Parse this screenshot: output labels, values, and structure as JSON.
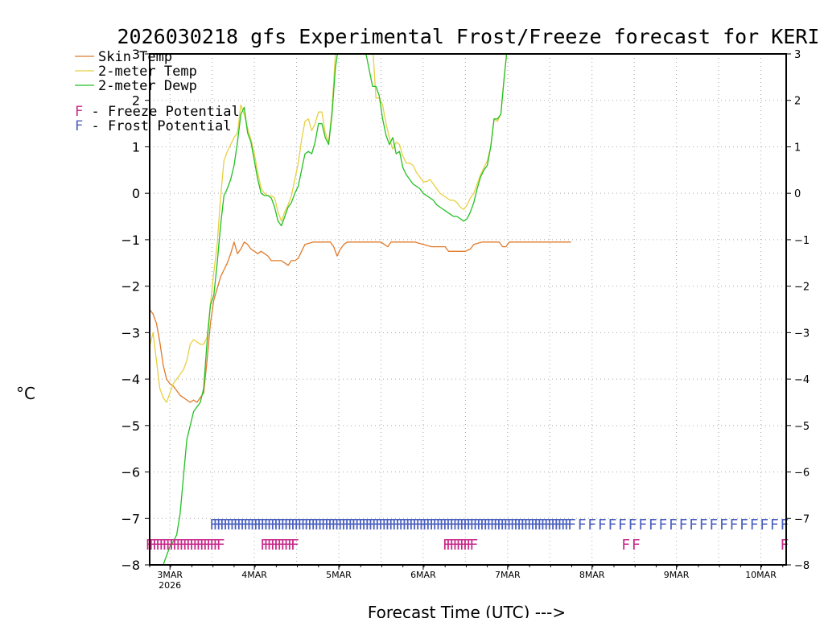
{
  "chart_data": {
    "type": "line",
    "title": "2026030218 gfs Experimental Frost/Freeze forecast for KERI",
    "ylabel": "°C",
    "xlabel": "Forecast Time (UTC) --->",
    "ylim": [
      -8,
      3
    ],
    "yticks": [
      3,
      2,
      1,
      0,
      -1,
      -2,
      -3,
      -4,
      -5,
      -6,
      -7,
      -8
    ],
    "ytick_labels": [
      "3",
      "2",
      "1",
      "0",
      "−1",
      "−2",
      "−3",
      "−4",
      "−5",
      "−6",
      "−7",
      "−8"
    ],
    "xlim": [
      2.76,
      10.3
    ],
    "xticks": [
      {
        "label": "3MAR",
        "sub": "2026",
        "day": 3
      },
      {
        "label": "4MAR",
        "sub": "",
        "day": 4
      },
      {
        "label": "5MAR",
        "sub": "",
        "day": 5
      },
      {
        "label": "6MAR",
        "sub": "",
        "day": 6
      },
      {
        "label": "7MAR",
        "sub": "",
        "day": 7
      },
      {
        "label": "8MAR",
        "sub": "",
        "day": 8
      },
      {
        "label": "9MAR",
        "sub": "",
        "day": 9
      },
      {
        "label": "10MAR",
        "sub": "",
        "day": 10
      }
    ],
    "grid": true,
    "legend_position": "top-left",
    "series": [
      {
        "name": "Skin Temp",
        "color": "#e07a2a",
        "x": [
          2.76,
          2.8,
          2.84,
          2.88,
          2.92,
          2.96,
          3.0,
          3.04,
          3.08,
          3.12,
          3.16,
          3.2,
          3.24,
          3.28,
          3.32,
          3.36,
          3.4,
          3.44,
          3.48,
          3.52,
          3.56,
          3.6,
          3.64,
          3.68,
          3.72,
          3.76,
          3.8,
          3.84,
          3.88,
          3.92,
          3.96,
          4.0,
          4.04,
          4.08,
          4.12,
          4.16,
          4.2,
          4.24,
          4.28,
          4.32,
          4.36,
          4.4,
          4.44,
          4.48,
          4.52,
          4.56,
          4.6,
          4.7,
          4.8,
          4.9,
          4.94,
          4.98,
          5.02,
          5.06,
          5.1,
          5.2,
          5.3,
          5.4,
          5.5,
          5.54,
          5.58,
          5.62,
          5.7,
          5.8,
          5.9,
          6.0,
          6.1,
          6.2,
          6.26,
          6.3,
          6.4,
          6.5,
          6.56,
          6.6,
          6.7,
          6.8,
          6.9,
          6.94,
          6.98,
          7.02,
          7.06,
          7.1,
          7.2,
          7.3,
          7.4,
          7.5,
          7.6,
          7.75
        ],
        "values": [
          -2.5,
          -2.6,
          -2.8,
          -3.2,
          -3.7,
          -4.0,
          -4.1,
          -4.15,
          -4.25,
          -4.35,
          -4.4,
          -4.45,
          -4.5,
          -4.45,
          -4.5,
          -4.4,
          -4.3,
          -3.6,
          -2.8,
          -2.3,
          -2.05,
          -1.8,
          -1.65,
          -1.5,
          -1.3,
          -1.05,
          -1.3,
          -1.2,
          -1.05,
          -1.1,
          -1.2,
          -1.25,
          -1.3,
          -1.25,
          -1.3,
          -1.35,
          -1.45,
          -1.45,
          -1.45,
          -1.45,
          -1.5,
          -1.55,
          -1.45,
          -1.45,
          -1.4,
          -1.25,
          -1.1,
          -1.05,
          -1.05,
          -1.05,
          -1.15,
          -1.35,
          -1.2,
          -1.1,
          -1.05,
          -1.05,
          -1.05,
          -1.05,
          -1.05,
          -1.1,
          -1.15,
          -1.05,
          -1.05,
          -1.05,
          -1.05,
          -1.1,
          -1.15,
          -1.15,
          -1.15,
          -1.25,
          -1.25,
          -1.25,
          -1.2,
          -1.1,
          -1.05,
          -1.05,
          -1.05,
          -1.15,
          -1.15,
          -1.05,
          -1.05,
          -1.05,
          -1.05,
          -1.05,
          -1.05,
          -1.05,
          -1.05,
          -1.05
        ]
      },
      {
        "name": "2-meter Temp",
        "color": "#e8d040",
        "x": [
          2.76,
          2.8,
          2.84,
          2.88,
          2.92,
          2.96,
          3.0,
          3.04,
          3.08,
          3.12,
          3.16,
          3.2,
          3.24,
          3.28,
          3.32,
          3.36,
          3.4,
          3.44,
          3.48,
          3.52,
          3.56,
          3.6,
          3.64,
          3.68,
          3.72,
          3.76,
          3.8,
          3.84,
          3.88,
          3.92,
          3.96,
          4.0,
          4.04,
          4.08,
          4.12,
          4.16,
          4.2,
          4.24,
          4.28,
          4.32,
          4.36,
          4.4,
          4.44,
          4.48,
          4.52,
          4.56,
          4.6,
          4.64,
          4.68,
          4.72,
          4.76,
          4.8,
          4.84,
          4.88,
          4.92,
          4.96,
          5.0,
          5.04,
          5.08,
          5.12,
          5.16,
          5.2,
          5.3,
          5.4,
          5.44,
          5.48,
          5.52,
          5.56,
          5.6,
          5.64,
          5.68,
          5.72,
          5.76,
          5.8,
          5.84,
          5.88,
          5.92,
          5.96,
          6.0,
          6.04,
          6.08,
          6.12,
          6.16,
          6.2,
          6.24,
          6.28,
          6.32,
          6.36,
          6.4,
          6.44,
          6.48,
          6.52,
          6.56,
          6.6,
          6.64,
          6.68,
          6.72,
          6.76,
          6.8,
          6.84,
          6.88,
          6.92,
          6.96,
          7.0,
          7.02
        ],
        "values": [
          -3.3,
          -3.0,
          -3.6,
          -4.2,
          -4.4,
          -4.5,
          -4.3,
          -4.1,
          -4.0,
          -3.9,
          -3.8,
          -3.6,
          -3.25,
          -3.15,
          -3.2,
          -3.25,
          -3.25,
          -3.1,
          -2.4,
          -1.7,
          -1.1,
          -0.1,
          0.7,
          0.9,
          1.05,
          1.2,
          1.3,
          1.9,
          1.7,
          1.4,
          1.15,
          0.85,
          0.45,
          0.1,
          0.0,
          -0.05,
          -0.05,
          -0.1,
          -0.4,
          -0.6,
          -0.4,
          -0.25,
          -0.05,
          0.3,
          0.65,
          1.15,
          1.55,
          1.6,
          1.35,
          1.5,
          1.75,
          1.75,
          1.3,
          1.1,
          1.8,
          3.0,
          3.2,
          3.2,
          3.2,
          3.2,
          3.2,
          3.2,
          3.2,
          3.2,
          2.05,
          2.05,
          1.9,
          1.5,
          1.2,
          0.95,
          1.1,
          1.05,
          0.8,
          0.65,
          0.65,
          0.6,
          0.45,
          0.35,
          0.25,
          0.25,
          0.3,
          0.2,
          0.1,
          0.0,
          -0.05,
          -0.1,
          -0.15,
          -0.15,
          -0.2,
          -0.3,
          -0.35,
          -0.25,
          -0.1,
          0.0,
          0.2,
          0.4,
          0.55,
          0.7,
          1.0,
          1.6,
          1.55,
          1.7,
          2.5,
          3.2,
          3.2
        ]
      },
      {
        "name": "2-meter Dewp",
        "color": "#22c022",
        "x": [
          2.92,
          2.96,
          3.0,
          3.04,
          3.08,
          3.12,
          3.16,
          3.2,
          3.24,
          3.28,
          3.32,
          3.36,
          3.4,
          3.44,
          3.48,
          3.52,
          3.56,
          3.6,
          3.64,
          3.68,
          3.72,
          3.76,
          3.8,
          3.84,
          3.88,
          3.92,
          3.96,
          4.0,
          4.04,
          4.08,
          4.12,
          4.16,
          4.2,
          4.24,
          4.28,
          4.32,
          4.36,
          4.4,
          4.44,
          4.48,
          4.52,
          4.56,
          4.6,
          4.64,
          4.68,
          4.72,
          4.76,
          4.8,
          4.84,
          4.88,
          4.92,
          4.96,
          5.0,
          5.04,
          5.08,
          5.12,
          5.16,
          5.2,
          5.3,
          5.4,
          5.44,
          5.48,
          5.52,
          5.56,
          5.6,
          5.64,
          5.68,
          5.72,
          5.76,
          5.8,
          5.84,
          5.88,
          5.92,
          5.96,
          6.0,
          6.04,
          6.08,
          6.12,
          6.16,
          6.2,
          6.24,
          6.28,
          6.32,
          6.36,
          6.4,
          6.44,
          6.48,
          6.52,
          6.56,
          6.6,
          6.64,
          6.68,
          6.72,
          6.76,
          6.8,
          6.84,
          6.88,
          6.92,
          6.96,
          7.0,
          7.02
        ],
        "values": [
          -8.0,
          -7.8,
          -7.6,
          -7.5,
          -7.35,
          -6.9,
          -6.1,
          -5.3,
          -5.0,
          -4.7,
          -4.6,
          -4.5,
          -4.2,
          -3.2,
          -2.4,
          -2.2,
          -1.5,
          -0.7,
          -0.05,
          0.1,
          0.3,
          0.6,
          1.1,
          1.7,
          1.85,
          1.3,
          1.1,
          0.7,
          0.3,
          0.0,
          -0.05,
          -0.05,
          -0.1,
          -0.3,
          -0.6,
          -0.7,
          -0.5,
          -0.3,
          -0.2,
          0.0,
          0.15,
          0.5,
          0.85,
          0.9,
          0.85,
          1.1,
          1.5,
          1.5,
          1.2,
          1.05,
          1.7,
          2.7,
          3.2,
          3.2,
          3.2,
          3.2,
          3.2,
          3.2,
          3.2,
          2.3,
          2.3,
          2.1,
          1.6,
          1.25,
          1.05,
          1.2,
          0.85,
          0.9,
          0.55,
          0.4,
          0.3,
          0.2,
          0.15,
          0.1,
          0.0,
          -0.05,
          -0.1,
          -0.15,
          -0.25,
          -0.3,
          -0.35,
          -0.4,
          -0.45,
          -0.5,
          -0.5,
          -0.55,
          -0.6,
          -0.55,
          -0.4,
          -0.2,
          0.1,
          0.35,
          0.5,
          0.6,
          1.0,
          1.6,
          1.6,
          1.7,
          2.5,
          3.2,
          3.2
        ]
      }
    ],
    "potential_markers": [
      {
        "name": "Freeze Potential",
        "symbol": "F",
        "color": "#c8298a",
        "level": -7.55,
        "x": [
          2.76,
          2.8,
          2.84,
          2.88,
          2.92,
          2.96,
          3.0,
          3.04,
          3.08,
          3.12,
          3.16,
          3.2,
          3.24,
          3.28,
          3.32,
          3.36,
          3.4,
          3.44,
          3.48,
          3.52,
          3.56,
          3.6,
          4.12,
          4.16,
          4.2,
          4.24,
          4.28,
          4.32,
          4.36,
          4.4,
          4.44,
          4.48,
          6.28,
          6.32,
          6.36,
          6.4,
          6.44,
          6.48,
          6.52,
          6.56,
          6.6,
          8.4,
          8.52,
          10.28
        ]
      },
      {
        "name": "Frost Potential",
        "symbol": "F",
        "color": "#4a5fbf",
        "level": -7.12,
        "x": [
          3.52,
          3.56,
          3.6,
          3.64,
          3.68,
          3.72,
          3.76,
          3.8,
          3.84,
          3.88,
          3.92,
          3.96,
          4.0,
          4.04,
          4.08,
          4.12,
          4.16,
          4.2,
          4.24,
          4.28,
          4.32,
          4.36,
          4.4,
          4.44,
          4.48,
          4.52,
          4.56,
          4.6,
          4.64,
          4.68,
          4.72,
          4.76,
          4.8,
          4.84,
          4.88,
          4.92,
          4.96,
          5.0,
          5.04,
          5.08,
          5.12,
          5.16,
          5.2,
          5.24,
          5.28,
          5.32,
          5.36,
          5.4,
          5.44,
          5.48,
          5.52,
          5.56,
          5.6,
          5.64,
          5.68,
          5.72,
          5.76,
          5.8,
          5.84,
          5.88,
          5.92,
          5.96,
          6.0,
          6.04,
          6.08,
          6.12,
          6.16,
          6.2,
          6.24,
          6.28,
          6.32,
          6.36,
          6.4,
          6.44,
          6.48,
          6.52,
          6.56,
          6.6,
          6.64,
          6.68,
          6.72,
          6.76,
          6.8,
          6.84,
          6.88,
          6.92,
          6.96,
          7.0,
          7.04,
          7.08,
          7.12,
          7.16,
          7.2,
          7.24,
          7.28,
          7.32,
          7.36,
          7.4,
          7.44,
          7.48,
          7.52,
          7.56,
          7.6,
          7.64,
          7.68,
          7.72,
          7.76,
          7.88,
          8.0,
          8.12,
          8.24,
          8.36,
          8.48,
          8.6,
          8.72,
          8.84,
          8.96,
          9.08,
          9.2,
          9.32,
          9.44,
          9.56,
          9.68,
          9.8,
          9.92,
          10.04,
          10.16,
          10.28
        ]
      }
    ],
    "legend": [
      {
        "label": "Skin Temp",
        "color": "#e07a2a",
        "kind": "line"
      },
      {
        "label": "2-meter Temp",
        "color": "#e8d040",
        "kind": "line"
      },
      {
        "label": "2-meter Dewp",
        "color": "#22c022",
        "kind": "line"
      },
      {
        "label": "F - Freeze Potential",
        "symbol": "F",
        "text": " - Freeze Potential",
        "color": "#c8298a",
        "kind": "symbol"
      },
      {
        "label": "F - Frost Potential",
        "symbol": "F",
        "text": " - Frost Potential",
        "color": "#4a5fbf",
        "kind": "symbol"
      }
    ]
  }
}
